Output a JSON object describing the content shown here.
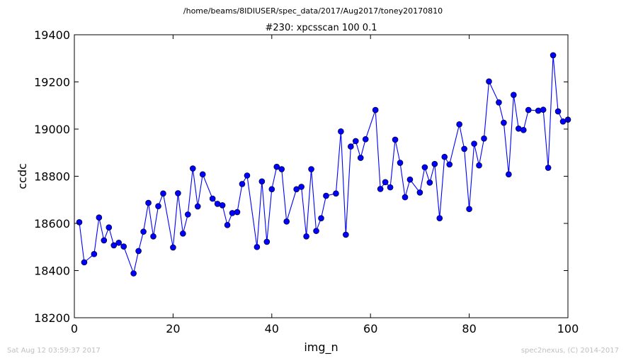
{
  "figure": {
    "suptitle": "/home/beams/8IDIUSER/spec_data/2017/Aug2017/toney20170810",
    "timestamp": "Sat Aug 12 03:59:37 2017",
    "credit": "spec2nexus, (C) 2014-2017"
  },
  "colors": {
    "series": "#0000ff",
    "axes": "#000000"
  },
  "chart_data": {
    "type": "line",
    "title": "#230: xpcsscan 100 0.1",
    "xlabel": "img_n",
    "ylabel": "ccdc",
    "xlim": [
      0,
      100
    ],
    "ylim": [
      18200,
      19400
    ],
    "xticks": [
      0,
      20,
      40,
      60,
      80,
      100
    ],
    "yticks": [
      18200,
      18400,
      18600,
      18800,
      19000,
      19200,
      19400
    ],
    "grid": false,
    "markers": "circle",
    "series": [
      {
        "x": [
          1,
          2,
          4,
          5,
          6,
          7,
          8,
          9,
          10,
          12,
          13,
          14,
          15,
          16,
          17,
          18,
          20,
          21,
          22,
          23,
          24,
          25,
          26,
          28,
          29,
          30,
          31,
          32,
          33,
          34,
          35,
          37,
          38,
          39,
          40,
          41,
          42,
          43,
          45,
          46,
          47,
          48,
          49,
          50,
          51,
          53,
          54,
          55,
          56,
          57,
          58,
          59,
          61,
          62,
          63,
          64,
          65,
          66,
          67,
          68,
          70,
          71,
          72,
          73,
          74,
          75,
          76,
          78,
          79,
          80,
          81,
          82,
          83,
          84,
          86,
          87,
          88,
          89,
          90,
          91,
          92,
          94,
          95,
          96,
          97,
          98,
          99,
          100
        ],
        "values": [
          18605,
          18435,
          18470,
          18625,
          18528,
          18583,
          18507,
          18518,
          18502,
          18388,
          18483,
          18565,
          18687,
          18545,
          18673,
          18727,
          18498,
          18728,
          18557,
          18638,
          18833,
          18672,
          18808,
          18705,
          18683,
          18677,
          18593,
          18644,
          18648,
          18767,
          18803,
          18500,
          18778,
          18522,
          18745,
          18840,
          18830,
          18608,
          18745,
          18755,
          18545,
          18830,
          18568,
          18622,
          18717,
          18727,
          18990,
          18552,
          18926,
          18949,
          18878,
          18957,
          19081,
          18746,
          18775,
          18753,
          18955,
          18857,
          18711,
          18786,
          18731,
          18838,
          18773,
          18852,
          18622,
          18882,
          18850,
          19020,
          18916,
          18661,
          18938,
          18846,
          18960,
          19202,
          19113,
          19027,
          18808,
          19145,
          19002,
          18996,
          19081,
          19078,
          19082,
          18836,
          19313,
          19075,
          19032,
          19040
        ]
      }
    ]
  }
}
